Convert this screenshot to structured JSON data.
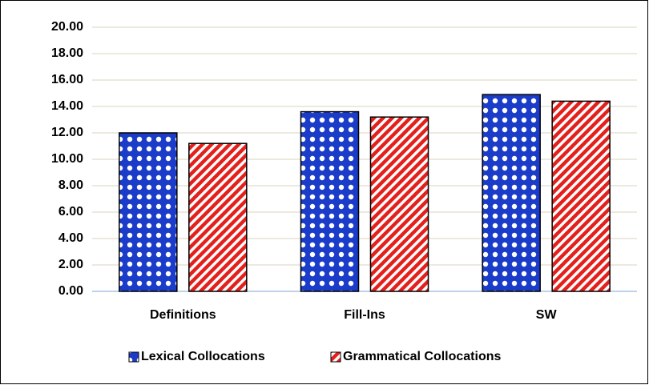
{
  "chart_data": {
    "type": "bar",
    "categories": [
      "Definitions",
      "Fill-Ins",
      "SW"
    ],
    "series": [
      {
        "name": "Lexical Collocations",
        "color": "#1a3cc8",
        "values": [
          12.0,
          13.6,
          14.9
        ]
      },
      {
        "name": "Grammatical Collocations",
        "color": "#e3201b",
        "values": [
          11.2,
          13.2,
          14.4
        ]
      }
    ],
    "ylim": [
      0,
      20
    ],
    "yticks": [
      {
        "value": 0,
        "label": "0.00"
      },
      {
        "value": 2,
        "label": "2.00"
      },
      {
        "value": 4,
        "label": "4.00"
      },
      {
        "value": 6,
        "label": "6.00"
      },
      {
        "value": 8,
        "label": "8.00"
      },
      {
        "value": 10,
        "label": "10.00"
      },
      {
        "value": 12,
        "label": "12.00"
      },
      {
        "value": 14,
        "label": "14.00"
      },
      {
        "value": 16,
        "label": "16.00"
      },
      {
        "value": 18,
        "label": "18.00"
      },
      {
        "value": 20,
        "label": "20.00"
      }
    ],
    "grid": true,
    "legend": "bottom"
  }
}
